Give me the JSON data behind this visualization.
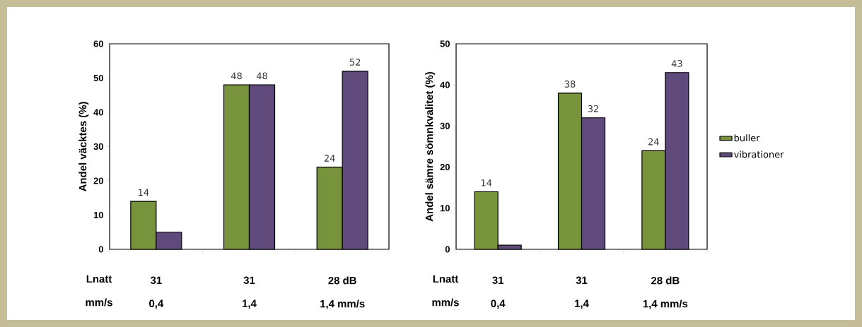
{
  "chart_data": [
    {
      "type": "bar",
      "ylabel": "Andel väcktes (%)",
      "categories": [
        "31",
        "31",
        "28 dB"
      ],
      "annotations": [
        "Lnatt",
        "mm/s",
        "0,4",
        "1,4",
        "1,4 mm/s"
      ],
      "ylim": [
        0,
        60
      ],
      "yticks": [
        0,
        10,
        20,
        30,
        40,
        50,
        60
      ],
      "series": [
        {
          "color": "#77933c",
          "values": [
            14,
            48,
            24
          ],
          "value_labels": [
            "14",
            "48",
            "24"
          ]
        },
        {
          "color": "#604a7b",
          "values": [
            5,
            48,
            52
          ],
          "value_labels": [
            null,
            "48",
            "52"
          ]
        }
      ]
    },
    {
      "type": "bar",
      "ylabel": "Andel sämre sömnkvalitet (%)",
      "categories": [
        "31",
        "31",
        "28 dB"
      ],
      "annotations": [
        "Lnatt",
        "mm/s",
        "0,4",
        "1,4",
        "1,4 mm/s"
      ],
      "ylim": [
        0,
        50
      ],
      "yticks": [
        0,
        10,
        20,
        30,
        40,
        50
      ],
      "legend": "right",
      "series": [
        {
          "name": "buller",
          "color": "#77933c",
          "values": [
            14,
            38,
            24
          ],
          "value_labels": [
            "14",
            "38",
            "24"
          ]
        },
        {
          "name": "vibrationer",
          "color": "#604a7b",
          "values": [
            1,
            32,
            43
          ],
          "value_labels": [
            null,
            "32",
            "43"
          ]
        }
      ]
    }
  ]
}
